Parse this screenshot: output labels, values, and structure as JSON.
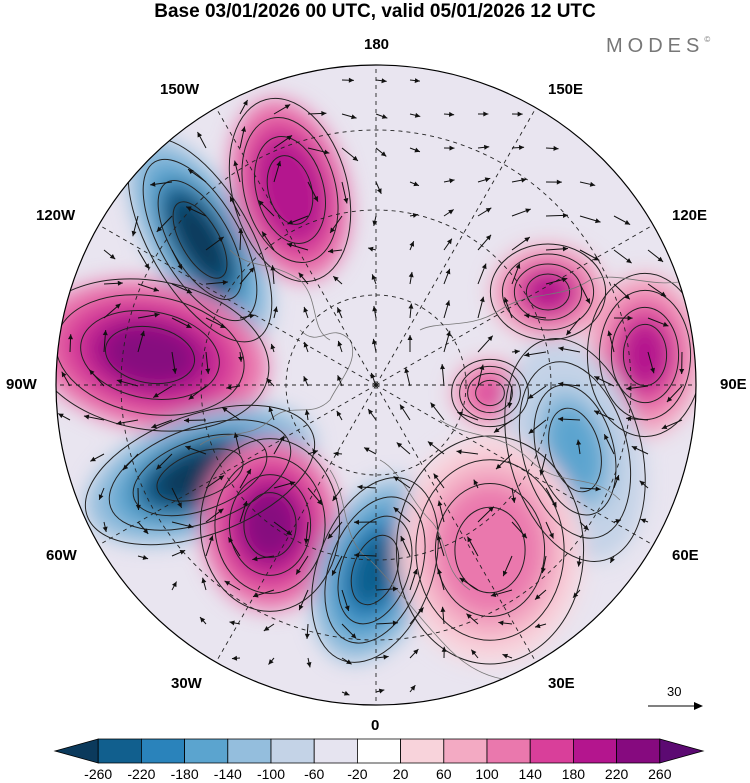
{
  "title": "Base 03/01/2026 00 UTC, valid 05/01/2026 12 UTC",
  "brand": "MODES",
  "brand_mark": "©",
  "longitude_labels": {
    "lon_180": "180",
    "lon_150w": "150W",
    "lon_150e": "150E",
    "lon_120w": "120W",
    "lon_120e": "120E",
    "lon_90w": "90W",
    "lon_90e": "90E",
    "lon_60w": "60W",
    "lon_60e": "60E",
    "lon_30w": "30W",
    "lon_30e": "30E",
    "lon_0": "0"
  },
  "reference_vector": {
    "label": "30"
  },
  "colorbar": {
    "ticks": [
      "-260",
      "-220",
      "-180",
      "-140",
      "-100",
      "-60",
      "-20",
      "20",
      "60",
      "100",
      "140",
      "180",
      "220",
      "260"
    ],
    "colors": [
      "#0b3a5c",
      "#115f8e",
      "#2a83bb",
      "#5ba4cf",
      "#94bedd",
      "#c4d3e7",
      "#e6e4f0",
      "#ffffff",
      "#f8d3db",
      "#f3aac3",
      "#ea78ad",
      "#d93f9a",
      "#b4158e",
      "#860a7f",
      "#5c0a72"
    ]
  },
  "anomaly_centers": [
    {
      "id": "neg-pacific",
      "sign": "negative",
      "value": -260,
      "lon": "135W"
    },
    {
      "id": "pos-alaska",
      "sign": "positive",
      "value": 220,
      "lon": "160W"
    },
    {
      "id": "pos-canada",
      "sign": "positive",
      "value": 240,
      "lon": "95W"
    },
    {
      "id": "neg-atlantic",
      "sign": "negative",
      "value": -260,
      "lon": "65W"
    },
    {
      "id": "pos-atlantic",
      "sign": "positive",
      "value": 240,
      "lon": "40W"
    },
    {
      "id": "neg-europe",
      "sign": "negative",
      "value": -220,
      "lon": "10W"
    },
    {
      "id": "pos-siberia",
      "sign": "positive",
      "value": 200,
      "lon": "110E"
    },
    {
      "id": "pos-asia",
      "sign": "positive",
      "value": 200,
      "lon": "95E"
    },
    {
      "id": "pos-arctic",
      "sign": "positive",
      "value": 160,
      "lon": "85E"
    },
    {
      "id": "neg-asia",
      "sign": "negative",
      "value": -140,
      "lon": "70E"
    },
    {
      "id": "pos-eurasia",
      "sign": "positive",
      "value": 120,
      "lon": "40E"
    }
  ]
}
